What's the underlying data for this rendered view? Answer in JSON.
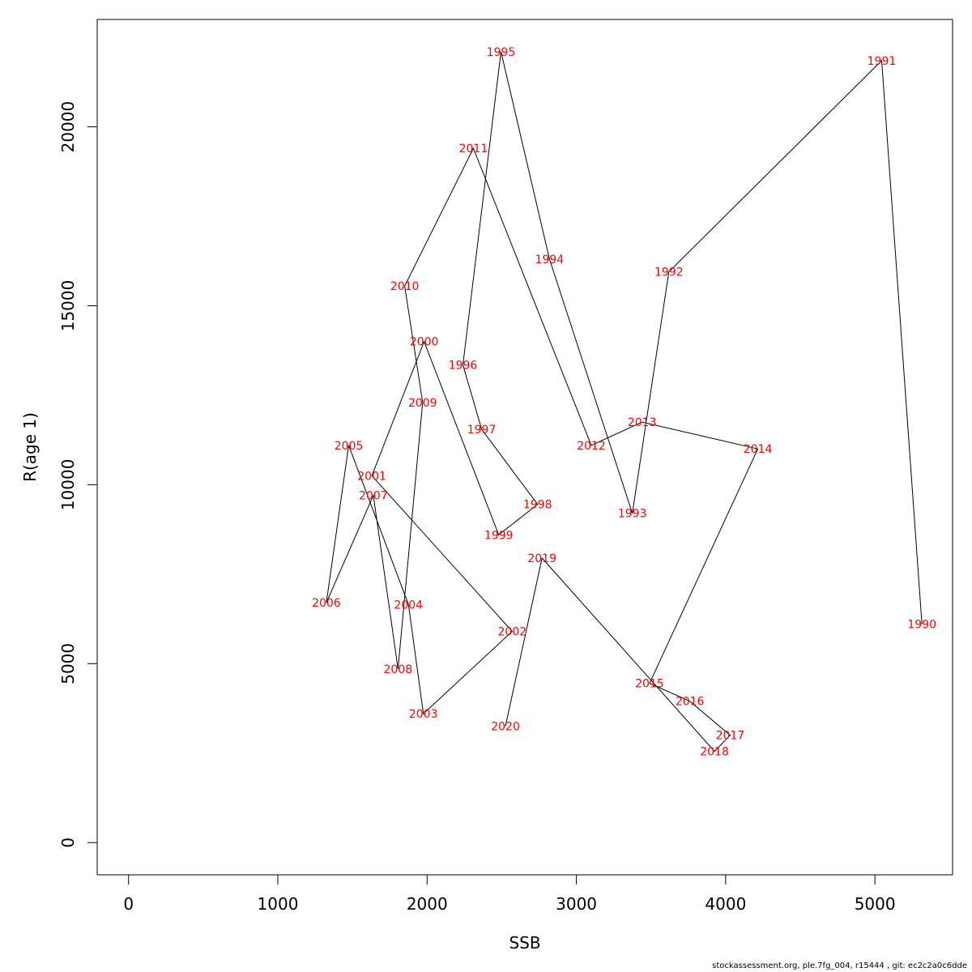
{
  "chart_data": {
    "type": "line",
    "xlabel": "SSB",
    "ylabel": "R(age 1)",
    "xlim": [
      -210,
      5520
    ],
    "ylim": [
      -900,
      23000
    ],
    "xticks": [
      0,
      1000,
      2000,
      3000,
      4000,
      5000
    ],
    "xtick_labels": [
      "0",
      "1000",
      "2000",
      "3000",
      "4000",
      "5000"
    ],
    "yticks": [
      0,
      5000,
      10000,
      15000,
      20000
    ],
    "ytick_labels": [
      "0",
      "5000",
      "10000",
      "15000",
      "20000"
    ],
    "grid": false,
    "line_color": "#000000",
    "label_color": "#ff0000",
    "points": [
      {
        "year": "1990",
        "x": 5315,
        "y": 6100
      },
      {
        "year": "1991",
        "x": 5045,
        "y": 21850
      },
      {
        "year": "1992",
        "x": 3620,
        "y": 15950
      },
      {
        "year": "1993",
        "x": 3375,
        "y": 9200
      },
      {
        "year": "1994",
        "x": 2820,
        "y": 16300
      },
      {
        "year": "1995",
        "x": 2495,
        "y": 22100
      },
      {
        "year": "1996",
        "x": 2240,
        "y": 13350
      },
      {
        "year": "1997",
        "x": 2365,
        "y": 11550
      },
      {
        "year": "1998",
        "x": 2740,
        "y": 9450
      },
      {
        "year": "1999",
        "x": 2480,
        "y": 8600
      },
      {
        "year": "2000",
        "x": 1980,
        "y": 14000
      },
      {
        "year": "2001",
        "x": 1630,
        "y": 10250
      },
      {
        "year": "2002",
        "x": 2570,
        "y": 5900
      },
      {
        "year": "2003",
        "x": 1975,
        "y": 3600
      },
      {
        "year": "2004",
        "x": 1875,
        "y": 6650
      },
      {
        "year": "2005",
        "x": 1475,
        "y": 11100
      },
      {
        "year": "2006",
        "x": 1325,
        "y": 6700
      },
      {
        "year": "2007",
        "x": 1640,
        "y": 9700
      },
      {
        "year": "2008",
        "x": 1805,
        "y": 4850
      },
      {
        "year": "2009",
        "x": 1970,
        "y": 12300
      },
      {
        "year": "2010",
        "x": 1850,
        "y": 15550
      },
      {
        "year": "2011",
        "x": 2310,
        "y": 19400
      },
      {
        "year": "2012",
        "x": 3100,
        "y": 11100
      },
      {
        "year": "2013",
        "x": 3440,
        "y": 11750
      },
      {
        "year": "2014",
        "x": 4215,
        "y": 11000
      },
      {
        "year": "2015",
        "x": 3490,
        "y": 4450
      },
      {
        "year": "2016",
        "x": 3760,
        "y": 3950
      },
      {
        "year": "2017",
        "x": 4030,
        "y": 3000
      },
      {
        "year": "2018",
        "x": 3925,
        "y": 2550
      },
      {
        "year": "2019",
        "x": 2770,
        "y": 7950
      },
      {
        "year": "2020",
        "x": 2525,
        "y": 3250
      }
    ]
  },
  "footer": {
    "text": "stockassessment.org, ple.7fg_004, r15444 , git: ec2c2a0c6dde"
  }
}
